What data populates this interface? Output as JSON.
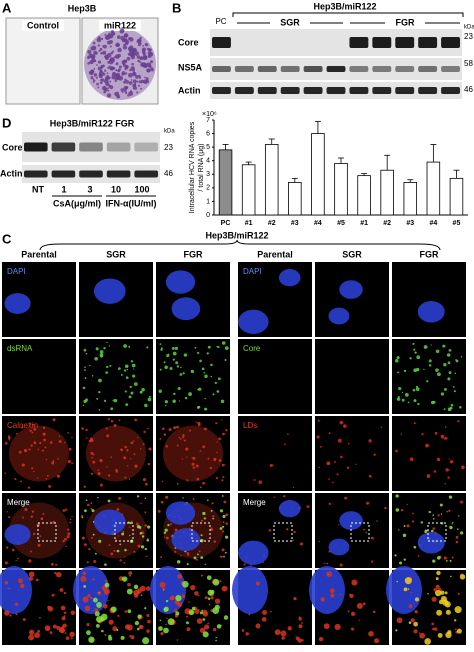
{
  "panels": {
    "A": {
      "label": "A",
      "title": "Hep3B",
      "wells": [
        "Control",
        "miR122"
      ]
    },
    "B": {
      "label": "B",
      "title": "Hep3B/miR122",
      "pc": "PC",
      "groups": [
        "SGR",
        "FGR"
      ],
      "rows": [
        "Core",
        "NS5A",
        "Actin"
      ],
      "kda_unit": "kDa",
      "kda": [
        23,
        58,
        46
      ]
    },
    "D": {
      "label": "D",
      "title": "Hep3B/miR122 FGR",
      "rows": [
        "Core",
        "Actin"
      ],
      "kda_unit": "kDa",
      "kda": [
        23,
        46
      ],
      "lanes": [
        "NT",
        "1",
        "3",
        "10",
        "100"
      ],
      "groups": [
        "CsA(μg/ml)",
        "IFN-α(IU/ml)"
      ]
    },
    "C": {
      "label": "C",
      "title": "Hep3B/miR122",
      "left": {
        "columns": [
          "Parental",
          "SGR",
          "FGR"
        ],
        "rows": [
          "DAPI",
          "dsRNA",
          "Calnexin",
          "Merge"
        ]
      },
      "right": {
        "columns": [
          "Parental",
          "SGR",
          "FGR"
        ],
        "rows": [
          "DAPI",
          "Core",
          "LDs",
          "Merge"
        ]
      }
    }
  },
  "chart_data": {
    "type": "bar",
    "y_unit": "×10⁶",
    "ylabel": [
      "Intracellular HCV RNA copies",
      "/ total RNA (μg)"
    ],
    "categories": [
      "PC",
      "#1",
      "#2",
      "#3",
      "#4",
      "#5",
      "#1",
      "#2",
      "#3",
      "#4",
      "#5"
    ],
    "values": [
      4.8,
      3.7,
      5.2,
      2.4,
      6.0,
      3.8,
      2.9,
      3.3,
      2.4,
      3.9,
      2.7
    ],
    "errors": [
      0.4,
      0.2,
      0.4,
      0.3,
      0.9,
      0.4,
      0.15,
      1.1,
      0.2,
      1.3,
      0.6
    ],
    "colors": [
      "#8c8c8c",
      "#ffffff",
      "#ffffff",
      "#ffffff",
      "#ffffff",
      "#ffffff",
      "#ffffff",
      "#ffffff",
      "#ffffff",
      "#ffffff",
      "#ffffff"
    ],
    "ylim": [
      0,
      7
    ],
    "yticks": [
      0,
      1,
      2,
      3,
      4,
      5,
      6,
      7
    ]
  }
}
